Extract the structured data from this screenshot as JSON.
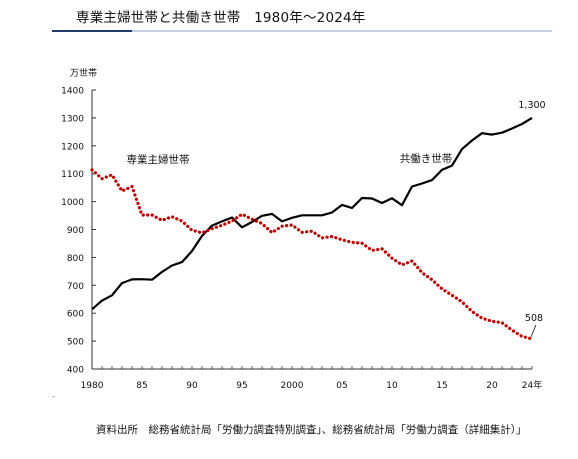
{
  "header": {
    "title": "専業主婦世帯と共働き世帯　1980年～2024年"
  },
  "footer": {
    "source": "資料出所　総務省統計局「労働力調査特別調査」、総務省統計局「労働力調査（詳細集計）」",
    "marker": "-"
  },
  "colors": {
    "dual_income": "#000000",
    "housewife": "#c00000",
    "accent": "#1f3a6b"
  },
  "chart_data": {
    "type": "line",
    "title": "",
    "xlabel": "",
    "ylabel": "万世帯",
    "unit_label": "万世帯",
    "x_tick_labels": [
      "1980",
      "85",
      "90",
      "95",
      "2000",
      "05",
      "10",
      "15",
      "20",
      "24年"
    ],
    "x_tick_values": [
      1980,
      1985,
      1990,
      1995,
      2000,
      2005,
      2010,
      2015,
      2020,
      2024
    ],
    "y_ticks": [
      400,
      500,
      600,
      700,
      800,
      900,
      1000,
      1100,
      1200,
      1300,
      1400
    ],
    "xlim": [
      1980,
      2024
    ],
    "ylim": [
      400,
      1400
    ],
    "grid": false,
    "legend": "inline labels",
    "x": [
      1980,
      1981,
      1982,
      1983,
      1984,
      1985,
      1986,
      1987,
      1988,
      1989,
      1990,
      1991,
      1992,
      1993,
      1994,
      1995,
      1996,
      1997,
      1998,
      1999,
      2000,
      2001,
      2002,
      2003,
      2004,
      2005,
      2006,
      2007,
      2008,
      2009,
      2010,
      2011,
      2012,
      2013,
      2014,
      2015,
      2016,
      2017,
      2018,
      2019,
      2020,
      2021,
      2022,
      2023,
      2024
    ],
    "series": [
      {
        "name": "共働き世帯",
        "line_style": "solid",
        "values": [
          614,
          645,
          664,
          708,
          721,
          722,
          720,
          748,
          771,
          783,
          823,
          877,
          914,
          929,
          943,
          908,
          927,
          949,
          956,
          929,
          942,
          951,
          951,
          951,
          961,
          988,
          977,
          1013,
          1011,
          995,
          1012,
          987,
          1054,
          1065,
          1077,
          1114,
          1129,
          1188,
          1219,
          1245,
          1240,
          1247,
          1262,
          1278,
          1300
        ],
        "end_label": "1,300"
      },
      {
        "name": "専業主婦世帯",
        "line_style": "dotted",
        "values": [
          1114,
          1082,
          1096,
          1038,
          1054,
          952,
          952,
          933,
          946,
          930,
          897,
          888,
          903,
          915,
          930,
          955,
          937,
          921,
          889,
          912,
          916,
          890,
          894,
          870,
          875,
          863,
          854,
          851,
          825,
          831,
          797,
          773,
          787,
          745,
          720,
          687,
          664,
          641,
          606,
          582,
          571,
          566,
          539,
          517,
          508
        ],
        "end_label": "508"
      }
    ]
  }
}
